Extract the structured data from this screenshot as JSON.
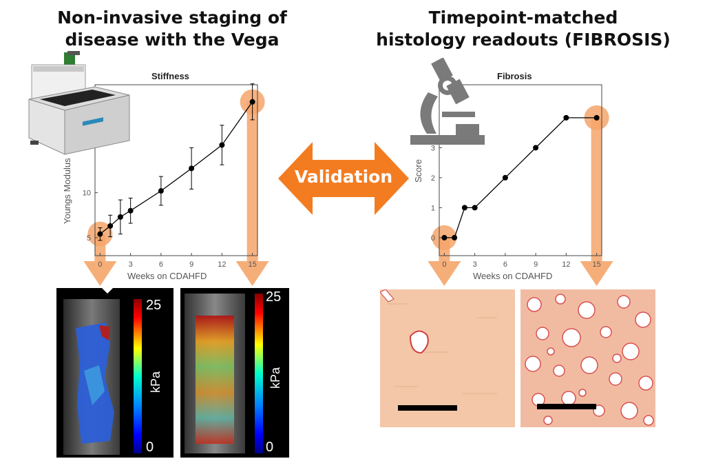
{
  "left_heading": {
    "line1": "Non-invasive staging of",
    "line2": "disease with the Vega"
  },
  "right_heading": {
    "line1": "Timepoint-matched",
    "line2": "histology readouts (FIBROSIS)"
  },
  "validation_label": "Validation",
  "colors": {
    "highlight": "#f5a56a",
    "arrow": "#f47c20",
    "line": "#000000"
  },
  "chart_data": [
    {
      "type": "line",
      "title": "Stiffness",
      "xlabel": "Weeks on CDAHFD",
      "ylabel": "Youngs Modulus",
      "x": [
        0,
        1,
        2,
        3,
        6,
        9,
        12,
        15
      ],
      "xticks": [
        "0",
        "3",
        "6",
        "9",
        "12",
        "15"
      ],
      "yticks": [
        "5",
        "10"
      ],
      "series": [
        {
          "values": [
            5.4,
            6.3,
            7.3,
            8.0,
            10.2,
            12.7,
            15.3,
            20.1
          ],
          "error": [
            0.7,
            1.2,
            1.9,
            1.4,
            1.6,
            2.3,
            2.2,
            2.0
          ]
        }
      ],
      "xlim": [
        -0.5,
        15.5
      ],
      "ylim": [
        3,
        22
      ],
      "highlighted_x": [
        0,
        15
      ]
    },
    {
      "type": "line",
      "title": "Fibrosis",
      "xlabel": "Weeks on CDAHFD",
      "ylabel": "Score",
      "x": [
        0,
        1,
        2,
        3,
        6,
        9,
        12,
        15
      ],
      "xticks": [
        "0",
        "3",
        "6",
        "9",
        "12",
        "15"
      ],
      "yticks": [
        "0",
        "1",
        "2",
        "3"
      ],
      "series": [
        {
          "values": [
            0,
            0,
            1,
            1,
            2,
            3,
            4,
            4
          ]
        }
      ],
      "xlim": [
        -0.5,
        15.5
      ],
      "ylim": [
        -0.6,
        5.1
      ],
      "highlighted_x": [
        0,
        15
      ]
    }
  ],
  "elastography": [
    {
      "ticks": {
        "max": "25",
        "min": "0"
      },
      "unit": "kPa",
      "level": "low"
    },
    {
      "ticks": {
        "max": "25",
        "min": "0"
      },
      "unit": "kPa",
      "level": "high"
    }
  ],
  "histology": [
    {
      "level": "low fibrosis"
    },
    {
      "level": "high fibrosis"
    }
  ],
  "icons": [
    "vega-instrument-icon",
    "microscope-icon"
  ]
}
